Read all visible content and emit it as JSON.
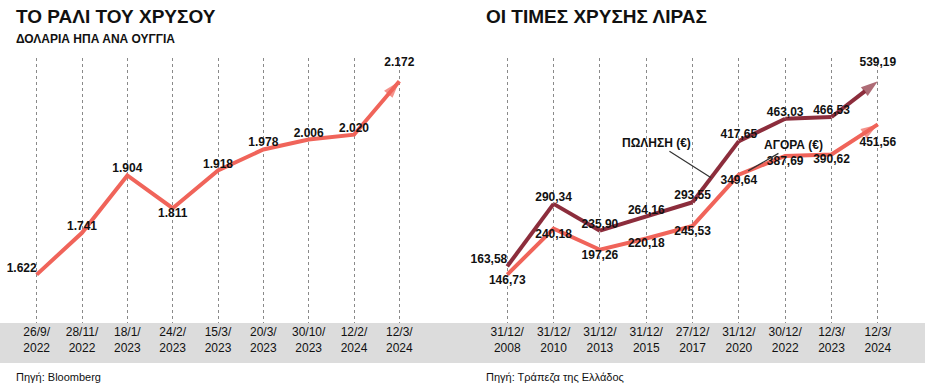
{
  "chart_data": [
    {
      "type": "line",
      "title": "ΤΟ ΡΑΛΙ ΤΟΥ ΧΡΥΣΟΥ",
      "subtitle": "ΔΟΛΑΡΙΑ ΗΠΑ ΑΝΑ ΟΥΓΓΙΑ",
      "source": "Πηγή: Bloomberg",
      "categories": [
        "26/9/2022",
        "28/11/2022",
        "18/1/2023",
        "24/2/2023",
        "15/3/2023",
        "20/3/2023",
        "30/10/2023",
        "12/2/2024",
        "12/3/2024"
      ],
      "values": [
        1622,
        1741,
        1904,
        1811,
        1918,
        1978,
        2006,
        2020,
        2172
      ],
      "value_labels": [
        "1.622",
        "1.741",
        "1.904",
        "1.811",
        "1.918",
        "1.978",
        "2.006",
        "2.020",
        "2.172"
      ],
      "color": "#f0645a",
      "marker": "arrow",
      "data_labels": true,
      "tick_labels": "x",
      "grid": true
    },
    {
      "type": "line",
      "title": "ΟΙ ΤΙΜΕΣ ΧΡΥΣΗΣ ΛΙΡΑΣ",
      "source": "Πηγή: Τράπεζα της Ελλάδος",
      "categories": [
        "31/12/2008",
        "31/12/2010",
        "31/12/2013",
        "31/12/2015",
        "27/12/2017",
        "31/12/2020",
        "30/12/2022",
        "12/3/2023",
        "12/3/2024"
      ],
      "series": [
        {
          "name": "ΠΩΛΗΣΗ (€)",
          "color": "#8c2d3c",
          "values": [
            163.58,
            290.34,
            235.9,
            264.16,
            293.55,
            417.65,
            463.03,
            466.53,
            539.19
          ],
          "value_labels": [
            "163,58",
            "290,34",
            "235,90",
            "264,16",
            "293,55",
            "417,65",
            "463,03",
            "466,53",
            "539,19"
          ]
        },
        {
          "name": "ΑΓΟΡΑ (€)",
          "color": "#f0645a",
          "values": [
            146.73,
            240.18,
            197.26,
            220.18,
            245.53,
            349.64,
            387.69,
            390.62,
            451.56
          ],
          "value_labels": [
            "146,73",
            "240,18",
            "197,26",
            "220,18",
            "245,53",
            "349,64",
            "387,69",
            "390,62",
            "451,56"
          ]
        }
      ],
      "marker": "arrow",
      "data_labels": true,
      "tick_labels": "x",
      "grid": true
    }
  ]
}
